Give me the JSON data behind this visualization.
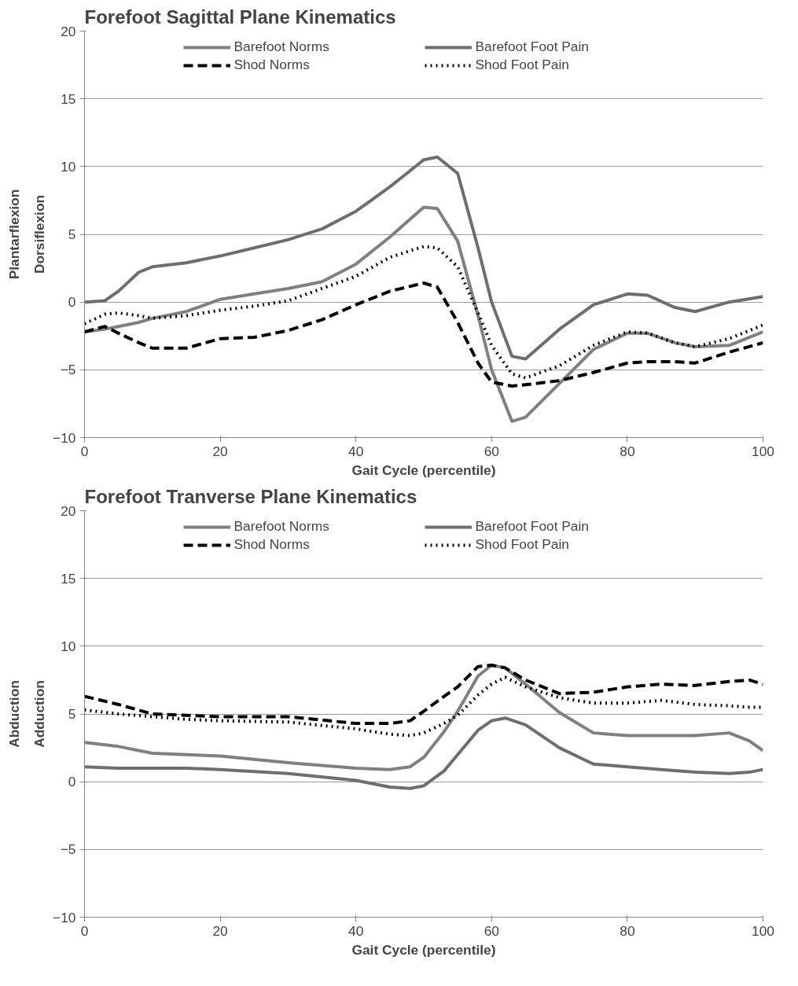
{
  "chart_data": [
    {
      "type": "line",
      "title": "Forefoot Sagittal Plane Kinematics",
      "xlabel": "Gait Cycle (percentile)",
      "ylabel": "Dorsiflexion",
      "annotations": [
        "Plantarflexion"
      ],
      "xlim": [
        0,
        100
      ],
      "ylim": [
        -10,
        20
      ],
      "xticks": [
        0,
        20,
        40,
        60,
        80,
        100
      ],
      "yticks": [
        -10,
        -5,
        0,
        5,
        10,
        15,
        20
      ],
      "grid": "y",
      "legend": "top",
      "x": [
        0,
        3,
        5,
        8,
        10,
        15,
        20,
        25,
        30,
        35,
        40,
        45,
        50,
        52,
        55,
        58,
        60,
        63,
        65,
        70,
        75,
        80,
        83,
        87,
        90,
        95,
        100
      ],
      "series": [
        {
          "name": "Barefoot Norms",
          "color": "#808080",
          "line_style": "solid",
          "values": [
            -2.2,
            -2.0,
            -1.8,
            -1.5,
            -1.2,
            -0.7,
            0.2,
            0.6,
            1.0,
            1.5,
            2.8,
            4.8,
            7.0,
            6.9,
            4.5,
            -1.0,
            -5.0,
            -8.8,
            -8.5,
            -6.0,
            -3.5,
            -2.3,
            -2.3,
            -3.0,
            -3.3,
            -3.2,
            -2.2
          ]
        },
        {
          "name": "Shod Norms",
          "color": "#000000",
          "line_style": "dashed",
          "values": [
            -2.2,
            -1.8,
            -2.3,
            -3.0,
            -3.4,
            -3.4,
            -2.7,
            -2.6,
            -2.1,
            -1.3,
            -0.2,
            0.8,
            1.4,
            1.1,
            -1.5,
            -4.5,
            -5.9,
            -6.2,
            -6.1,
            -5.8,
            -5.2,
            -4.5,
            -4.4,
            -4.4,
            -4.5,
            -3.7,
            -3.0
          ]
        },
        {
          "name": "Barefoot Foot Pain",
          "color": "#6e6e6e",
          "line_style": "solid",
          "values": [
            0.0,
            0.1,
            0.8,
            2.2,
            2.6,
            2.9,
            3.4,
            4.0,
            4.6,
            5.4,
            6.7,
            8.5,
            10.5,
            10.7,
            9.5,
            4.0,
            0.0,
            -4.0,
            -4.2,
            -2.0,
            -0.2,
            0.6,
            0.5,
            -0.4,
            -0.7,
            0.0,
            0.4
          ]
        },
        {
          "name": "Shod Foot Pain",
          "color": "#000000",
          "line_style": "dotted",
          "values": [
            -1.6,
            -0.9,
            -0.8,
            -1.0,
            -1.2,
            -1.0,
            -0.6,
            -0.3,
            0.1,
            1.0,
            1.9,
            3.3,
            4.1,
            4.0,
            2.6,
            -0.8,
            -3.2,
            -5.3,
            -5.6,
            -4.7,
            -3.2,
            -2.2,
            -2.3,
            -3.0,
            -3.3,
            -2.7,
            -1.7
          ]
        }
      ]
    },
    {
      "type": "line",
      "title": "Forefoot Tranverse Plane Kinematics",
      "xlabel": "Gait Cycle (percentile)",
      "ylabel": "Adduction",
      "annotations": [
        "Abduction"
      ],
      "xlim": [
        0,
        100
      ],
      "ylim": [
        -10,
        20
      ],
      "xticks": [
        0,
        20,
        40,
        60,
        80,
        100
      ],
      "yticks": [
        -10,
        -5,
        0,
        5,
        10,
        15,
        20
      ],
      "grid": "y",
      "legend": "top",
      "x": [
        0,
        5,
        10,
        15,
        20,
        30,
        40,
        45,
        48,
        50,
        53,
        55,
        58,
        60,
        62,
        65,
        70,
        75,
        80,
        85,
        90,
        95,
        98,
        100
      ],
      "series": [
        {
          "name": "Barefoot Norms",
          "color": "#808080",
          "line_style": "solid",
          "values": [
            2.9,
            2.6,
            2.1,
            2.0,
            1.9,
            1.4,
            1.0,
            0.9,
            1.1,
            1.8,
            3.7,
            5.2,
            7.8,
            8.6,
            8.4,
            7.2,
            5.1,
            3.6,
            3.4,
            3.4,
            3.4,
            3.6,
            3.0,
            2.3
          ]
        },
        {
          "name": "Shod Norms",
          "color": "#000000",
          "line_style": "dashed",
          "values": [
            6.3,
            5.7,
            5.0,
            4.9,
            4.8,
            4.8,
            4.3,
            4.3,
            4.5,
            5.2,
            6.3,
            7.0,
            8.5,
            8.6,
            8.4,
            7.5,
            6.5,
            6.6,
            7.0,
            7.2,
            7.1,
            7.4,
            7.5,
            7.2
          ]
        },
        {
          "name": "Barefoot Foot Pain",
          "color": "#6e6e6e",
          "line_style": "solid",
          "values": [
            1.1,
            1.0,
            1.0,
            1.0,
            0.9,
            0.6,
            0.1,
            -0.4,
            -0.5,
            -0.3,
            0.8,
            2.0,
            3.8,
            4.5,
            4.7,
            4.2,
            2.5,
            1.3,
            1.1,
            0.9,
            0.7,
            0.6,
            0.7,
            0.9
          ]
        },
        {
          "name": "Shod Foot Pain",
          "color": "#000000",
          "line_style": "dotted",
          "values": [
            5.3,
            5.0,
            4.8,
            4.6,
            4.5,
            4.4,
            3.9,
            3.5,
            3.4,
            3.6,
            4.3,
            4.9,
            6.4,
            7.2,
            7.7,
            7.0,
            6.2,
            5.8,
            5.8,
            6.0,
            5.7,
            5.6,
            5.5,
            5.5
          ]
        }
      ]
    }
  ]
}
